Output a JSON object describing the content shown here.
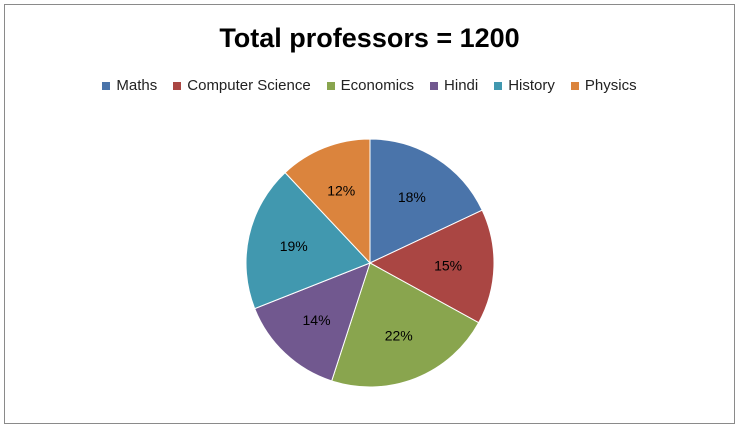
{
  "chart_data": {
    "type": "pie",
    "title": "Total professors = 1200",
    "categories": [
      "Maths",
      "Computer Science",
      "Economics",
      "Hindi",
      "History",
      "Physics"
    ],
    "values": [
      18,
      15,
      22,
      14,
      19,
      12
    ],
    "labels": [
      "18%",
      "15%",
      "22%",
      "14%",
      "19%",
      "12%"
    ],
    "colors": [
      "#4A74AA",
      "#AA4643",
      "#89A54E",
      "#71588F",
      "#4198AF",
      "#DB843D"
    ],
    "legend": "top"
  }
}
